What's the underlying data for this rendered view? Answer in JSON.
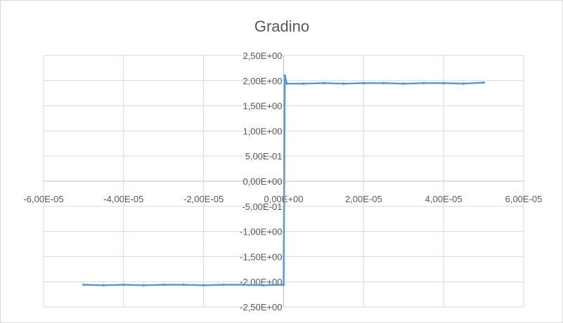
{
  "chart_data": {
    "type": "scatter",
    "title": "Gradino",
    "xlabel": "",
    "ylabel": "",
    "xlim": [
      -6e-05,
      6e-05
    ],
    "ylim": [
      -2.5,
      2.5
    ],
    "x_ticks": [
      -6e-05,
      -4e-05,
      -2e-05,
      0,
      2e-05,
      4e-05,
      6e-05
    ],
    "x_tick_labels": [
      "-6,00E-05",
      "-4,00E-05",
      "-2,00E-05",
      "0,00E+00",
      "2,00E-05",
      "4,00E-05",
      "6,00E-05"
    ],
    "y_ticks": [
      2.5,
      2.0,
      1.5,
      1.0,
      0.5,
      0,
      -0.5,
      -1.0,
      -1.5,
      -2.0,
      -2.5
    ],
    "y_tick_labels": [
      "2,50E+00",
      "2,00E+00",
      "1,50E+00",
      "1,00E+00",
      "5,00E-01",
      "0,00E+00",
      "-5,00E-01",
      "-1,00E+00",
      "-1,50E+00",
      "-2,00E+00",
      "-2,50E+00"
    ],
    "grid": true,
    "legend": "none",
    "line_color": "#5b9bd5",
    "grid_color": "#d9d9d9",
    "series": [
      {
        "x": [
          -5e-05,
          -4.5e-05,
          -4e-05,
          -3.5e-05,
          -3e-05,
          -2.5e-05,
          -2e-05,
          -1.5e-05,
          -1e-05,
          -5e-06,
          -5e-07,
          0,
          3e-07,
          8e-07,
          5e-06,
          1e-05,
          1.5e-05,
          2e-05,
          2.5e-05,
          3e-05,
          3.5e-05,
          4e-05,
          4.5e-05,
          5e-05
        ],
        "y": [
          -2.06,
          -2.07,
          -2.06,
          -2.07,
          -2.06,
          -2.06,
          -2.07,
          -2.06,
          -2.06,
          -2.07,
          -2.06,
          -2.06,
          2.1,
          1.94,
          1.94,
          1.95,
          1.94,
          1.95,
          1.95,
          1.94,
          1.95,
          1.95,
          1.94,
          1.96
        ]
      }
    ]
  }
}
